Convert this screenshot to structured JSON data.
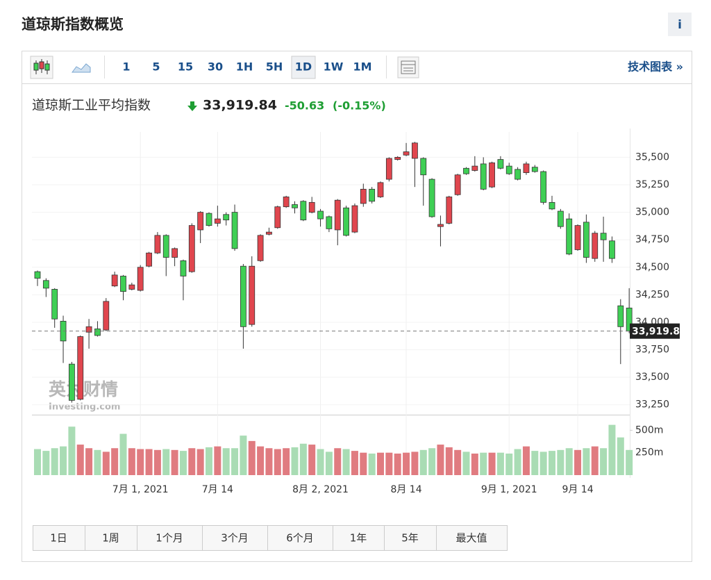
{
  "header": {
    "title": "道琼斯指数概览",
    "info": "i"
  },
  "toolbar": {
    "intervals": [
      "1",
      "5",
      "15",
      "30",
      "1H",
      "5H",
      "1D",
      "1W",
      "1M"
    ],
    "selected": "1D",
    "link": "技术图表 »"
  },
  "quote": {
    "name": "道琼斯工业平均指数",
    "price": "33,919.84",
    "change": "-50.63",
    "percent": "(-0.15%)"
  },
  "chart_data": {
    "type": "candlestick",
    "watermark": [
      "英为财情",
      "Investing.com"
    ],
    "categories": [
      null,
      null,
      null,
      null,
      null,
      null,
      null,
      null,
      null,
      null,
      null,
      null,
      "7月 1, 2021",
      null,
      null,
      null,
      null,
      null,
      null,
      null,
      null,
      "7月 14",
      null,
      null,
      null,
      null,
      null,
      null,
      null,
      null,
      null,
      null,
      null,
      "8月 2, 2021",
      null,
      null,
      null,
      null,
      null,
      null,
      null,
      null,
      null,
      "8月 14",
      null,
      null,
      null,
      null,
      null,
      null,
      null,
      null,
      null,
      null,
      null,
      "9月 1, 2021",
      null,
      null,
      null,
      null,
      null,
      null,
      null,
      "9月 14",
      null,
      null,
      null,
      null,
      null,
      null
    ],
    "open": [
      34460,
      34380,
      34300,
      34010,
      33620,
      33300,
      33910,
      33940,
      33930,
      34330,
      34420,
      34300,
      34290,
      34510,
      34630,
      34790,
      34590,
      34560,
      34460,
      34840,
      34990,
      34900,
      34980,
      35000,
      34510,
      33980,
      34560,
      34800,
      34860,
      35050,
      35070,
      35100,
      35000,
      35010,
      34960,
      34840,
      35040,
      34820,
      35080,
      35210,
      35140,
      35300,
      35480,
      35520,
      35490,
      35490,
      35300,
      34870,
      34900,
      35160,
      35400,
      35380,
      35440,
      35230,
      35480,
      35420,
      35390,
      35360,
      35410,
      35370,
      35090,
      35010,
      34940,
      34660,
      34910,
      34580,
      34810,
      34740,
      34150,
      34130
    ],
    "high": [
      34470,
      34400,
      34310,
      34060,
      33640,
      33880,
      34030,
      34010,
      34220,
      34460,
      34430,
      34360,
      34520,
      34640,
      34820,
      34800,
      34680,
      34570,
      34900,
      35010,
      35000,
      35060,
      35000,
      35070,
      34530,
      34600,
      34800,
      34860,
      35060,
      35150,
      35100,
      35110,
      35140,
      35030,
      34970,
      35120,
      35060,
      35080,
      35260,
      35230,
      35280,
      35500,
      35510,
      35630,
      35640,
      35500,
      35310,
      34970,
      35150,
      35350,
      35410,
      35510,
      35500,
      35460,
      35510,
      35450,
      35410,
      35460,
      35430,
      35380,
      35150,
      35030,
      34990,
      34890,
      34980,
      34830,
      34960,
      34780,
      34210,
      34310
    ],
    "low": [
      34330,
      34230,
      33950,
      33630,
      33270,
      33290,
      33760,
      33870,
      33920,
      34320,
      34200,
      34290,
      34280,
      34500,
      34620,
      34420,
      34510,
      34200,
      34450,
      34720,
      34870,
      34870,
      34880,
      34650,
      33760,
      33960,
      34550,
      34790,
      34850,
      35040,
      34990,
      34920,
      34990,
      34870,
      34820,
      34700,
      34780,
      34810,
      35050,
      35080,
      35130,
      35280,
      35470,
      35510,
      35230,
      35060,
      34950,
      34690,
      34890,
      35150,
      35340,
      35370,
      35200,
      35220,
      35390,
      35340,
      35290,
      35340,
      35360,
      35070,
      35020,
      34850,
      34610,
      34650,
      34540,
      34550,
      34550,
      34540,
      33620,
      33900
    ],
    "close": [
      34400,
      34310,
      34030,
      33830,
      33290,
      33870,
      33960,
      33880,
      34190,
      34430,
      34280,
      34340,
      34500,
      34630,
      34790,
      34590,
      34670,
      34420,
      34880,
      35000,
      34880,
      34940,
      34930,
      34670,
      33960,
      34510,
      34790,
      34820,
      35050,
      35140,
      35040,
      34930,
      35090,
      34940,
      34850,
      35110,
      34790,
      35060,
      35210,
      35100,
      35270,
      35490,
      35500,
      35550,
      35630,
      35340,
      34960,
      34890,
      35140,
      35340,
      35350,
      35420,
      35210,
      35450,
      35400,
      35350,
      35300,
      35440,
      35370,
      35090,
      35030,
      34870,
      34620,
      34880,
      34590,
      34810,
      34750,
      34580,
      33960,
      33919.84
    ],
    "volume": [
      290,
      270,
      300,
      320,
      540,
      340,
      300,
      280,
      260,
      300,
      460,
      300,
      290,
      290,
      280,
      290,
      280,
      270,
      300,
      290,
      310,
      320,
      300,
      300,
      440,
      380,
      320,
      300,
      290,
      300,
      310,
      350,
      340,
      290,
      260,
      300,
      290,
      270,
      250,
      240,
      250,
      250,
      240,
      250,
      260,
      280,
      300,
      340,
      310,
      280,
      260,
      240,
      250,
      250,
      250,
      240,
      290,
      320,
      270,
      260,
      270,
      280,
      300,
      280,
      300,
      320,
      300,
      560,
      420,
      280
    ],
    "last_label": "33,919.8",
    "up_color": "#e0464e",
    "down_color": "#3fcf55",
    "vol_up_color": "#e07b80",
    "vol_down_color": "#a9dcb4",
    "ylim": [
      33160,
      35730
    ],
    "yticks": [
      {
        "value": 33250,
        "label": "33,250"
      },
      {
        "value": 33500,
        "label": "33,500"
      },
      {
        "value": 33750,
        "label": "33,750"
      },
      {
        "value": 34000,
        "label": "34,000"
      },
      {
        "value": 34250,
        "label": "34,250"
      },
      {
        "value": 34500,
        "label": "34,500"
      },
      {
        "value": 34750,
        "label": "34,750"
      },
      {
        "value": 35000,
        "label": "35,000"
      },
      {
        "value": 35250,
        "label": "35,250"
      },
      {
        "value": 35500,
        "label": "35,500"
      }
    ],
    "y2lim": [
      0,
      650
    ],
    "y2ticks": [
      {
        "value": 250,
        "label": "250m"
      },
      {
        "value": 500,
        "label": "500m"
      }
    ],
    "grid": true
  },
  "ranges": [
    "1日",
    "1周",
    "1个月",
    "3个月",
    "6个月",
    "1年",
    "5年",
    "最大值"
  ]
}
